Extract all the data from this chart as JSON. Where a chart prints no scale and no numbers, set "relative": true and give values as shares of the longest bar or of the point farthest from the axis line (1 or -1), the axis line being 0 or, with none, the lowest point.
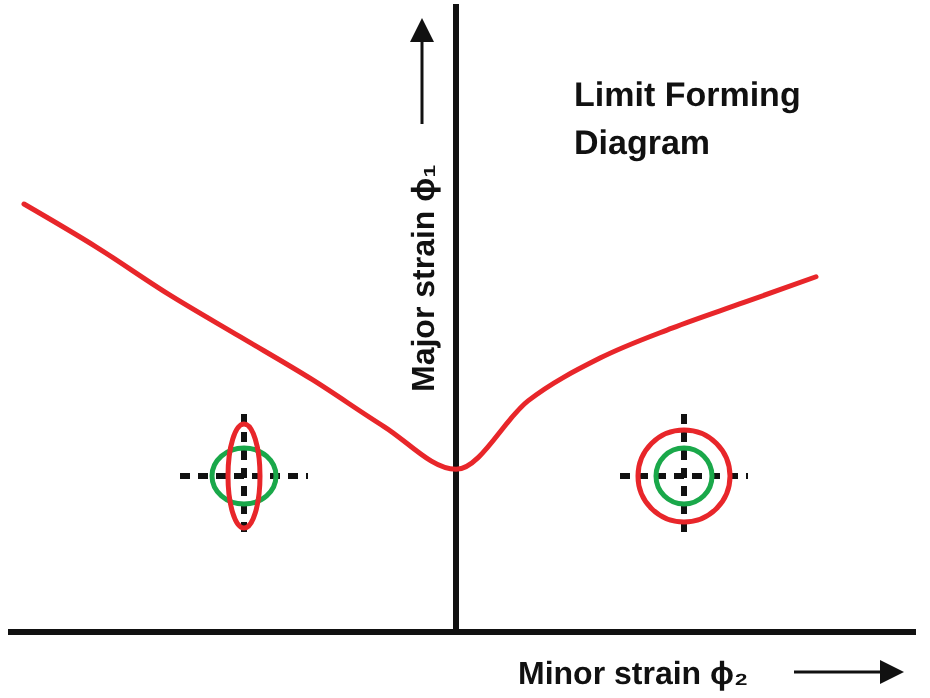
{
  "chart_data": {
    "type": "line",
    "title": "Limit Forming Diagram",
    "xlabel": "Minor strain ϕ₂",
    "ylabel": "Major strain ϕ₁",
    "relative": true,
    "categories": [
      null,
      null,
      null,
      null,
      null,
      null,
      null,
      null,
      null,
      null,
      null,
      null
    ],
    "values": [
      1,
      0.9,
      0.79,
      0.69,
      0.59,
      0.48,
      0.38,
      0.54,
      0.64,
      0.71,
      0.77,
      0.83
    ],
    "color": "#e8262a"
  }
}
